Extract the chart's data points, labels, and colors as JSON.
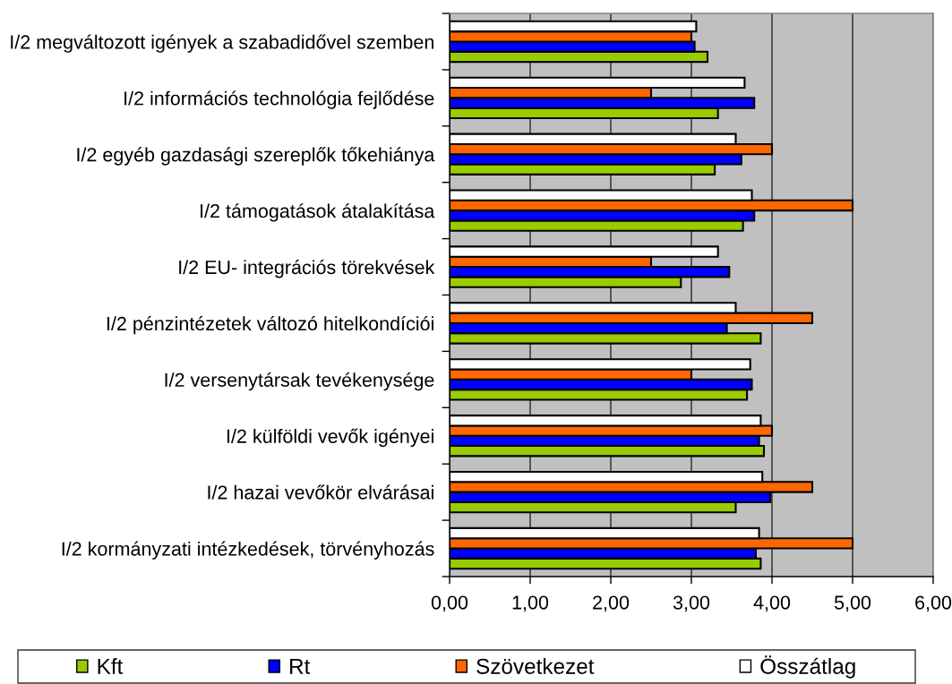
{
  "chart_data": {
    "type": "bar",
    "orientation": "horizontal",
    "categories": [
      "I/2 megváltozott igények a szabadidővel szemben",
      "I/2 információs technológia fejlődése",
      "I/2 egyéb gazdasági szereplők tőkehiánya",
      "I/2 támogatások átalakítása",
      "I/2 EU- integrációs törekvések",
      "I/2 pénzintézetek változó hitelkondíciói",
      "I/2 versenytársak tevékenysége",
      "I/2 külföldi vevők igényei",
      "I/2 hazai vevőkör elvárásai",
      "I/2 kormányzati intézkedések, törvényhozás"
    ],
    "series": [
      {
        "name": "Kft",
        "color": "#99cc00",
        "values": [
          3.2,
          3.33,
          3.29,
          3.64,
          2.87,
          3.86,
          3.69,
          3.9,
          3.55,
          3.86
        ]
      },
      {
        "name": "Rt",
        "color": "#0000ff",
        "values": [
          3.04,
          3.78,
          3.62,
          3.78,
          3.47,
          3.44,
          3.75,
          3.84,
          3.98,
          3.8
        ]
      },
      {
        "name": "Szövetkezet",
        "color": "#ff6600",
        "values": [
          3.0,
          2.5,
          4.0,
          5.0,
          2.5,
          4.5,
          3.0,
          4.0,
          4.5,
          5.0
        ]
      },
      {
        "name": "Összátlag",
        "color": "#ffffff",
        "values": [
          3.06,
          3.66,
          3.55,
          3.75,
          3.33,
          3.55,
          3.73,
          3.86,
          3.88,
          3.84
        ]
      }
    ],
    "xlim": [
      0,
      6
    ],
    "xticks": [
      {
        "value": 0,
        "label": "0,00"
      },
      {
        "value": 1,
        "label": "1,00"
      },
      {
        "value": 2,
        "label": "2,00"
      },
      {
        "value": 3,
        "label": "3,00"
      },
      {
        "value": 4,
        "label": "4,00"
      },
      {
        "value": 5,
        "label": "5,00"
      },
      {
        "value": 6,
        "label": "6,00"
      }
    ],
    "grid": "x",
    "legend": "bottom"
  }
}
